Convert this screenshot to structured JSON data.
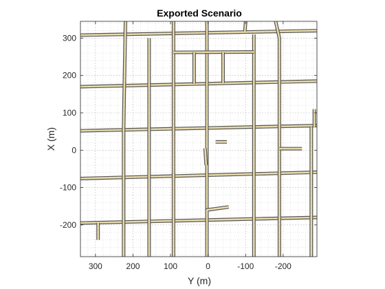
{
  "chart_data": {
    "type": "line",
    "title": "Exported Scenario",
    "xlabel": "Y (m)",
    "ylabel": "X (m)",
    "x_reversed": true,
    "xlim": [
      340,
      -290
    ],
    "ylim": [
      -285,
      345
    ],
    "xticks": [
      300,
      200,
      100,
      0,
      -100,
      -200
    ],
    "xtick_labels": [
      "300",
      "200",
      "100",
      "0",
      "-100",
      "-200"
    ],
    "yticks": [
      300,
      200,
      100,
      0,
      -100,
      -200
    ],
    "ytick_labels": [
      "300",
      "200",
      "100",
      "0",
      "-100",
      "-200"
    ],
    "grid": true,
    "minor_grid": true,
    "colors": {
      "road_edge": "#555555",
      "road_fill": "#e6d8a3",
      "lane_marking": "#f2f2f2",
      "grid": "#cccccc",
      "axis": "#262626"
    },
    "roads": [
      {
        "name": "",
        "points": [
          [
            340,
            308
          ],
          [
            -290,
            320
          ]
        ]
      },
      {
        "name": "",
        "points": [
          [
            340,
            170
          ],
          [
            -290,
            185
          ]
        ]
      },
      {
        "name": "",
        "points": [
          [
            340,
            52
          ],
          [
            -290,
            66
          ]
        ]
      },
      {
        "name": "",
        "points": [
          [
            340,
            -76
          ],
          [
            -290,
            -59
          ]
        ]
      },
      {
        "name": "",
        "points": [
          [
            340,
            -195
          ],
          [
            -290,
            -180
          ]
        ]
      },
      {
        "name": "",
        "points": [
          [
            220,
            345
          ],
          [
            225,
            60
          ],
          [
            225,
            -285
          ]
        ]
      },
      {
        "name": "",
        "points": [
          [
            157,
            300
          ],
          [
            157,
            -285
          ]
        ]
      },
      {
        "name": "",
        "points": [
          [
            92,
            345
          ],
          [
            92,
            -285
          ]
        ]
      },
      {
        "name": "",
        "points": [
          [
            3,
            345
          ],
          [
            3,
            -285
          ]
        ]
      },
      {
        "name": "",
        "points": [
          [
            -122,
            310
          ],
          [
            -122,
            -285
          ]
        ]
      },
      {
        "name": "",
        "points": [
          [
            -180,
            345
          ],
          [
            -190,
            300
          ],
          [
            -190,
            -285
          ]
        ]
      },
      {
        "name": "",
        "points": [
          [
            -275,
            62
          ],
          [
            -275,
            -285
          ]
        ]
      },
      {
        "name": "",
        "points": [
          [
            92,
            262
          ],
          [
            -122,
            263
          ]
        ]
      },
      {
        "name": "",
        "points": [
          [
            37,
            262
          ],
          [
            37,
            178
          ]
        ]
      },
      {
        "name": "",
        "points": [
          [
            -40,
            262
          ],
          [
            -40,
            180
          ]
        ]
      },
      {
        "name": "",
        "points": [
          [
            -190,
            4
          ],
          [
            -250,
            4
          ]
        ]
      },
      {
        "name": "",
        "points": [
          [
            -283,
            62
          ],
          [
            -283,
            110
          ]
        ]
      },
      {
        "name": "",
        "points": [
          [
            -20,
            22
          ],
          [
            -50,
            22
          ]
        ]
      },
      {
        "name": "",
        "points": [
          [
            8,
            5
          ],
          [
            5,
            -40
          ]
        ]
      },
      {
        "name": "",
        "points": [
          [
            3,
            -185
          ],
          [
            3,
            -160
          ],
          [
            -55,
            -152
          ]
        ]
      },
      {
        "name": "",
        "points": [
          [
            293,
            -195
          ],
          [
            293,
            -240
          ]
        ]
      },
      {
        "name": "",
        "points": [
          [
            -100,
            345
          ],
          [
            -98,
            318
          ]
        ]
      }
    ]
  }
}
